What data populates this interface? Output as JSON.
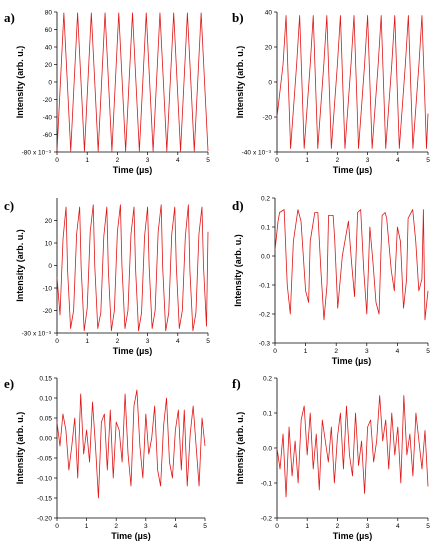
{
  "colors": {
    "trace": "#e01515",
    "axis": "#000000"
  },
  "chart_data": [
    {
      "panel": "a)",
      "type": "line",
      "xlabel": "Time (µs)",
      "ylabel": "Intensity (arb. u.)",
      "xlim": [
        0,
        5
      ],
      "ylim": [
        -80,
        80
      ],
      "scale_note": "x 10⁻³",
      "x_ticks": [
        "0",
        "1",
        "2",
        "3",
        "4",
        "5"
      ],
      "y_ticks": [
        "-80",
        "-60",
        "-40",
        "-20",
        "0",
        "20",
        "40",
        "60",
        "80"
      ],
      "period_us": 0.4545,
      "amplitude": 79,
      "series": [
        {
          "x": [
            0,
            0.114,
            0.227,
            0.341,
            0.455,
            0.568,
            0.682,
            0.795,
            0.909,
            1.023,
            1.136,
            1.25,
            1.364,
            1.477,
            1.591,
            1.705,
            1.818,
            1.932,
            2.045,
            2.159,
            2.273,
            2.386,
            2.5,
            2.614,
            2.727,
            2.841,
            2.955,
            3.068,
            3.182,
            3.295,
            3.409,
            3.523,
            3.636,
            3.75,
            3.864,
            3.977,
            4.091,
            4.205,
            4.318,
            4.432,
            4.545,
            4.659,
            4.773,
            4.886,
            5.0
          ],
          "y": [
            -79,
            0,
            79,
            0,
            -79,
            0,
            79,
            0,
            -79,
            0,
            79,
            0,
            -79,
            0,
            79,
            0,
            -79,
            0,
            79,
            0,
            -79,
            0,
            79,
            0,
            -79,
            0,
            79,
            0,
            -79,
            0,
            79,
            0,
            -79,
            0,
            79,
            0,
            -79,
            0,
            79,
            0,
            -79,
            0,
            79,
            0,
            -79
          ]
        }
      ]
    },
    {
      "panel": "b)",
      "type": "line",
      "xlabel": "Time (µs)",
      "ylabel": "Intensity (arb. u.)",
      "xlim": [
        0,
        5
      ],
      "ylim": [
        -40,
        40
      ],
      "scale_note": "x 10⁻³",
      "x_ticks": [
        "0",
        "1",
        "2",
        "3",
        "4",
        "5"
      ],
      "y_ticks": [
        "-40",
        "-20",
        "0",
        "20",
        "40"
      ],
      "period_us": 0.4545,
      "max": 38,
      "min": -38,
      "series": [
        {
          "x": [
            0,
            0.2,
            0.3,
            0.45,
            0.65,
            0.75,
            0.9,
            1.1,
            1.2,
            1.35,
            1.55,
            1.65,
            1.8,
            2.0,
            2.1,
            2.25,
            2.45,
            2.55,
            2.7,
            2.9,
            3.0,
            3.15,
            3.35,
            3.45,
            3.6,
            3.8,
            3.9,
            4.05,
            4.25,
            4.35,
            4.5,
            4.7,
            4.8,
            4.95,
            5.0
          ],
          "y": [
            -20,
            10,
            38,
            -38,
            10,
            38,
            -38,
            10,
            38,
            -38,
            10,
            38,
            -38,
            10,
            38,
            -38,
            10,
            38,
            -38,
            10,
            38,
            -38,
            10,
            38,
            -38,
            10,
            38,
            -38,
            10,
            38,
            -38,
            10,
            38,
            -38,
            -18
          ]
        }
      ]
    },
    {
      "panel": "c)",
      "type": "line",
      "xlabel": "Time (µs)",
      "ylabel": "Intensity (arb. u.)",
      "xlim": [
        0,
        5
      ],
      "ylim": [
        -30,
        30
      ],
      "scale_note": "x 10⁻³",
      "x_ticks": [
        "0",
        "1",
        "2",
        "3",
        "4",
        "5"
      ],
      "y_ticks": [
        "-30",
        "-20",
        "-10",
        "0",
        "10",
        "20"
      ],
      "period_us": 0.4545,
      "max": 27,
      "min": -29,
      "series": [
        {
          "x": [
            0,
            0.1,
            0.2,
            0.3,
            0.35,
            0.45,
            0.55,
            0.65,
            0.75,
            0.8,
            0.9,
            1.0,
            1.1,
            1.2,
            1.25,
            1.35,
            1.45,
            1.55,
            1.65,
            1.7,
            1.8,
            1.9,
            2.0,
            2.1,
            2.15,
            2.25,
            2.35,
            2.45,
            2.55,
            2.6,
            2.7,
            2.8,
            2.9,
            3.0,
            3.05,
            3.15,
            3.25,
            3.35,
            3.45,
            3.5,
            3.6,
            3.7,
            3.8,
            3.9,
            3.95,
            4.05,
            4.15,
            4.25,
            4.35,
            4.4,
            4.5,
            4.6,
            4.7,
            4.8,
            4.85,
            4.95,
            5.0
          ],
          "y": [
            -5,
            -22,
            12,
            26,
            -2,
            -28,
            -20,
            14,
            26,
            -1,
            -29,
            -19,
            15,
            27,
            0,
            -28,
            -21,
            13,
            26,
            -2,
            -29,
            -20,
            15,
            27,
            0,
            -28,
            -20,
            14,
            26,
            -1,
            -29,
            -21,
            13,
            26,
            0,
            -28,
            -20,
            15,
            27,
            -1,
            -29,
            -21,
            14,
            26,
            0,
            -28,
            -20,
            13,
            27,
            -2,
            -29,
            -21,
            14,
            26,
            0,
            -27,
            15
          ]
        }
      ]
    },
    {
      "panel": "d)",
      "type": "line",
      "xlabel": "Time (µs)",
      "ylabel": "Intensity (arb. u.)",
      "xlim": [
        0,
        5
      ],
      "ylim": [
        -0.3,
        0.2
      ],
      "x_ticks": [
        "0",
        "1",
        "2",
        "3",
        "4",
        "5"
      ],
      "y_ticks": [
        "-0.3",
        "-0.2",
        "-0.1",
        "0.0",
        "0.1",
        "0.2"
      ],
      "series": [
        {
          "x": [
            0,
            0.1,
            0.15,
            0.3,
            0.4,
            0.5,
            0.6,
            0.75,
            0.85,
            1.0,
            1.1,
            1.15,
            1.3,
            1.4,
            1.5,
            1.6,
            1.7,
            1.75,
            1.9,
            1.95,
            2.05,
            2.2,
            2.3,
            2.4,
            2.5,
            2.6,
            2.7,
            2.8,
            2.9,
            3.0,
            3.1,
            3.2,
            3.3,
            3.4,
            3.5,
            3.6,
            3.65,
            3.8,
            3.9,
            4.0,
            4.1,
            4.2,
            4.3,
            4.35,
            4.5,
            4.6,
            4.7,
            4.8,
            4.85,
            4.9,
            5.0
          ],
          "y": [
            0.02,
            0.12,
            0.15,
            0.16,
            -0.1,
            -0.2,
            0.05,
            0.16,
            0.12,
            -0.12,
            -0.16,
            0.05,
            0.15,
            0.15,
            -0.05,
            -0.22,
            -0.1,
            0.14,
            0.14,
            0.06,
            -0.18,
            0.0,
            0.06,
            0.12,
            -0.02,
            -0.14,
            0.15,
            0.16,
            -0.05,
            -0.2,
            0.1,
            -0.02,
            -0.16,
            -0.2,
            0.14,
            0.15,
            0.13,
            -0.05,
            -0.12,
            0.1,
            0.05,
            -0.18,
            -0.08,
            0.13,
            0.16,
            0.05,
            -0.12,
            -0.08,
            0.16,
            -0.22,
            -0.12
          ]
        }
      ]
    },
    {
      "panel": "e)",
      "type": "line",
      "xlabel": "Time (µs)",
      "ylabel": "Intensity (arb. u.)",
      "xlim": [
        0,
        5
      ],
      "ylim": [
        -0.2,
        0.15
      ],
      "x_ticks": [
        "0",
        "1",
        "2",
        "3",
        "4",
        "5"
      ],
      "y_ticks": [
        "-0.20",
        "-0.15",
        "-0.10",
        "-0.05",
        "0.00",
        "0.05",
        "0.10",
        "0.15"
      ],
      "series": [
        {
          "x": [
            0,
            0.1,
            0.2,
            0.3,
            0.4,
            0.5,
            0.6,
            0.7,
            0.8,
            0.9,
            1.0,
            1.1,
            1.2,
            1.3,
            1.4,
            1.5,
            1.6,
            1.7,
            1.8,
            1.9,
            2.0,
            2.1,
            2.2,
            2.3,
            2.4,
            2.5,
            2.6,
            2.7,
            2.8,
            2.9,
            3.0,
            3.1,
            3.2,
            3.3,
            3.4,
            3.5,
            3.6,
            3.7,
            3.8,
            3.9,
            4.0,
            4.1,
            4.2,
            4.3,
            4.4,
            4.5,
            4.6,
            4.7,
            4.8,
            4.9,
            5.0
          ],
          "y": [
            0.04,
            -0.02,
            0.06,
            0.02,
            -0.08,
            -0.02,
            0.05,
            -0.1,
            0.11,
            -0.04,
            0.02,
            -0.06,
            0.09,
            -0.02,
            -0.15,
            0.04,
            0.06,
            -0.08,
            0.07,
            -0.1,
            0.04,
            0.02,
            -0.06,
            0.11,
            -0.04,
            -0.12,
            0.08,
            0.12,
            -0.02,
            -0.1,
            0.06,
            -0.04,
            0.0,
            0.08,
            -0.08,
            -0.12,
            0.03,
            0.1,
            -0.06,
            -0.1,
            0.02,
            0.07,
            -0.08,
            0.07,
            -0.12,
            0.01,
            0.08,
            -0.02,
            -0.12,
            0.05,
            -0.02
          ]
        }
      ]
    },
    {
      "panel": "f)",
      "type": "line",
      "xlabel": "Time (µs)",
      "ylabel": "Intensity (arb. u.)",
      "xlim": [
        0,
        5
      ],
      "ylim": [
        -0.2,
        0.2
      ],
      "x_ticks": [
        "0",
        "1",
        "2",
        "3",
        "4",
        "5"
      ],
      "y_ticks": [
        "-0.2",
        "-0.1",
        "0.0",
        "0.1",
        "0.2"
      ],
      "series": [
        {
          "x": [
            0,
            0.1,
            0.2,
            0.3,
            0.4,
            0.5,
            0.6,
            0.7,
            0.8,
            0.9,
            1.0,
            1.1,
            1.2,
            1.3,
            1.4,
            1.5,
            1.6,
            1.7,
            1.8,
            1.9,
            2.0,
            2.1,
            2.2,
            2.3,
            2.4,
            2.5,
            2.6,
            2.7,
            2.8,
            2.9,
            3.0,
            3.1,
            3.2,
            3.3,
            3.4,
            3.5,
            3.6,
            3.7,
            3.8,
            3.9,
            4.0,
            4.1,
            4.2,
            4.3,
            4.4,
            4.5,
            4.6,
            4.7,
            4.8,
            4.9,
            5.0
          ],
          "y": [
            0.0,
            -0.06,
            0.04,
            -0.14,
            0.06,
            -0.08,
            0.02,
            -0.1,
            0.08,
            0.12,
            -0.02,
            0.1,
            -0.06,
            0.04,
            -0.12,
            0.08,
            0.02,
            -0.04,
            0.06,
            -0.1,
            0.03,
            0.1,
            -0.06,
            0.12,
            -0.02,
            -0.08,
            0.1,
            -0.05,
            0.02,
            -0.13,
            0.06,
            0.08,
            -0.04,
            0.02,
            0.15,
            0.02,
            0.08,
            -0.06,
            0.1,
            -0.02,
            0.06,
            -0.1,
            0.15,
            -0.02,
            0.04,
            -0.08,
            0.1,
            0.02,
            -0.06,
            0.05,
            -0.11
          ]
        }
      ]
    }
  ]
}
